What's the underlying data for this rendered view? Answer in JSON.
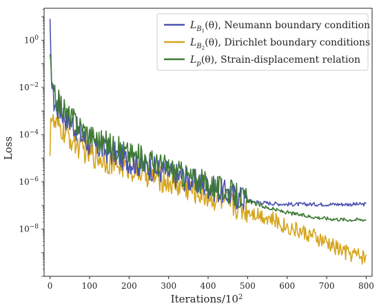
{
  "chart_data": {
    "type": "line",
    "title": "",
    "xlabel": "Iterations/10^2",
    "ylabel": "Loss",
    "xlim": [
      -15,
      815
    ],
    "ylim_log10": [
      -10,
      1.35
    ],
    "yscale": "log",
    "grid": false,
    "legend_position": "top-right",
    "x_ticks": [
      {
        "value": 0,
        "label": "0"
      },
      {
        "value": 100,
        "label": "100"
      },
      {
        "value": 200,
        "label": "200"
      },
      {
        "value": 300,
        "label": "300"
      },
      {
        "value": 400,
        "label": "400"
      },
      {
        "value": 500,
        "label": "500"
      },
      {
        "value": 600,
        "label": "600"
      },
      {
        "value": 700,
        "label": "700"
      },
      {
        "value": 800,
        "label": "800"
      }
    ],
    "y_ticks": [
      {
        "log10": 0,
        "base": "10",
        "exp": "0"
      },
      {
        "log10": -2,
        "base": "10",
        "exp": "−2"
      },
      {
        "log10": -4,
        "base": "10",
        "exp": "−4"
      },
      {
        "log10": -6,
        "base": "10",
        "exp": "−6"
      },
      {
        "log10": -8,
        "base": "10",
        "exp": "−8"
      }
    ],
    "series": [
      {
        "name": "L_{B1}(θ), Neumann boundary condition",
        "legend": {
          "main": "L",
          "sub": "B",
          "subsub": "1",
          "rest": "(θ), Neumann boundary condition"
        },
        "color": "#4a52b0",
        "x": [
          0,
          2,
          5,
          10,
          20,
          30,
          40,
          60,
          80,
          100,
          130,
          160,
          200,
          250,
          300,
          350,
          400,
          450,
          500,
          550,
          600,
          650,
          700,
          750,
          800
        ],
        "log10_y": [
          0.9,
          -0.9,
          -1.8,
          -2.6,
          -2.9,
          -3.0,
          -3.3,
          -3.6,
          -4.1,
          -4.4,
          -4.6,
          -4.8,
          -5.1,
          -5.4,
          -5.6,
          -5.9,
          -6.2,
          -6.5,
          -6.8,
          -6.9,
          -6.95,
          -6.95,
          -6.95,
          -6.95,
          -6.95
        ]
      },
      {
        "name": "L_{B2}(θ), Dirichlet boundary conditions",
        "legend": {
          "main": "L",
          "sub": "B",
          "subsub": "2",
          "rest": "(θ), Dirichlet boundary conditions"
        },
        "color": "#d6a51e",
        "x": [
          0,
          2,
          5,
          10,
          20,
          30,
          40,
          60,
          80,
          100,
          130,
          160,
          200,
          250,
          300,
          350,
          400,
          450,
          500,
          550,
          600,
          650,
          700,
          750,
          800
        ],
        "log10_y": [
          -4.9,
          -2.9,
          -3.4,
          -3.6,
          -3.7,
          -3.8,
          -4.0,
          -4.3,
          -4.6,
          -4.8,
          -5.0,
          -5.2,
          -5.4,
          -5.7,
          -6.0,
          -6.3,
          -6.6,
          -6.9,
          -7.2,
          -7.5,
          -7.9,
          -8.2,
          -8.6,
          -9.0,
          -9.2
        ]
      },
      {
        "name": "L_p(θ), Strain-displacement relation",
        "legend": {
          "main": "L",
          "sub": "p",
          "subsub": "",
          "rest": "(θ), Strain-displacement relation"
        },
        "color": "#3e7a34",
        "x": [
          0,
          2,
          5,
          10,
          20,
          30,
          40,
          60,
          80,
          100,
          130,
          160,
          200,
          250,
          300,
          350,
          400,
          450,
          500,
          550,
          600,
          650,
          700,
          750,
          800
        ],
        "log10_y": [
          -0.6,
          -1.3,
          -2.0,
          -2.4,
          -2.6,
          -2.8,
          -3.1,
          -3.4,
          -3.7,
          -4.0,
          -4.3,
          -4.5,
          -4.8,
          -5.1,
          -5.4,
          -5.8,
          -6.1,
          -6.4,
          -6.8,
          -7.1,
          -7.3,
          -7.45,
          -7.55,
          -7.6,
          -7.6
        ]
      }
    ]
  }
}
